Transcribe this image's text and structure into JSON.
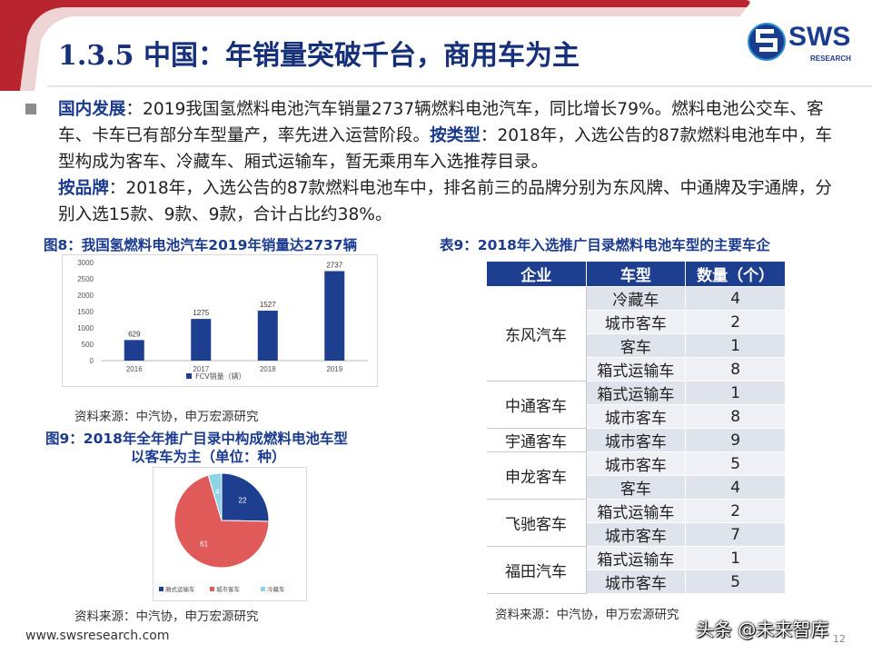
{
  "header": {
    "title": "1.3.5 中国：年销量突破千台，商用车为主",
    "logo_text": "SWS",
    "logo_sub": "RESEARCH"
  },
  "body": {
    "p1_label": "国内发展",
    "p1_text": "：2019我国氢燃料电池汽车销量2737辆燃料电池汽车，同比增长79%。燃料电池公交车、客车、卡车已有部分车型量产，率先进入运营阶段。",
    "p2_label": "按类型",
    "p2_text": "：2018年，入选公告的87款燃料电池车中，车型构成为客车、冷藏车、厢式运输车，暂无乘用车入选推荐目录。",
    "p3_label": "按品牌",
    "p3_text": "：2018年，入选公告的87款燃料电池车中，排名前三的品牌分别为东风牌、中通牌及宇通牌，分别入选15款、9款、9款，合计占比约38%。"
  },
  "fig8": {
    "title": "图8：我国氢燃料电池汽车2019年销量达2737辆",
    "source": "资料来源：中汽协，申万宏源研究"
  },
  "fig9": {
    "title_line1": "图9：2018年全年推广目录中构成燃料电池车型",
    "title_line2": "以客车为主（单位：种）",
    "source": "资料来源：中汽协，申万宏源研究"
  },
  "table9": {
    "title": "表9：2018年入选推广目录燃料电池车型的主要车企",
    "headers": [
      "企业",
      "车型",
      "数量（个）"
    ],
    "source": "资料来源：中汽协，申万宏源研究",
    "groups": [
      {
        "company": "东风汽车",
        "rows": [
          [
            "冷藏车",
            "4"
          ],
          [
            "城市客车",
            "2"
          ],
          [
            "客车",
            "1"
          ],
          [
            "箱式运输车",
            "8"
          ]
        ]
      },
      {
        "company": "中通客车",
        "rows": [
          [
            "箱式运输车",
            "1"
          ],
          [
            "城市客车",
            "8"
          ]
        ]
      },
      {
        "company": "宇通客车",
        "rows": [
          [
            "城市客车",
            "9"
          ]
        ]
      },
      {
        "company": "申龙客车",
        "rows": [
          [
            "城市客车",
            "5"
          ],
          [
            "客车",
            "4"
          ]
        ]
      },
      {
        "company": "飞驰客车",
        "rows": [
          [
            "箱式运输车",
            "2"
          ],
          [
            "城市客车",
            "7"
          ]
        ]
      },
      {
        "company": "福田汽车",
        "rows": [
          [
            "箱式运输车",
            "1"
          ],
          [
            "城市客车",
            "5"
          ]
        ]
      }
    ]
  },
  "chart_data": [
    {
      "type": "bar",
      "categories": [
        "2016",
        "2017",
        "2018",
        "2019"
      ],
      "values": [
        629,
        1275,
        1527,
        2737
      ],
      "series_name": "FCV销量（辆）",
      "ylim": [
        0,
        3000
      ],
      "yticks": [
        "0",
        "500",
        "1000",
        "1500",
        "2000",
        "2500",
        "3000"
      ],
      "color": "#1e3f8f"
    },
    {
      "type": "pie",
      "labels": [
        "厢式运输车",
        "城市客车",
        "冷藏车"
      ],
      "values": [
        22,
        61,
        4
      ],
      "colors": [
        "#1e3f8f",
        "#e05a5a",
        "#8fd3e8"
      ]
    }
  ],
  "footer": {
    "url": "www.swsresearch.com",
    "page": "12",
    "watermark": "头条 @未来智库"
  }
}
